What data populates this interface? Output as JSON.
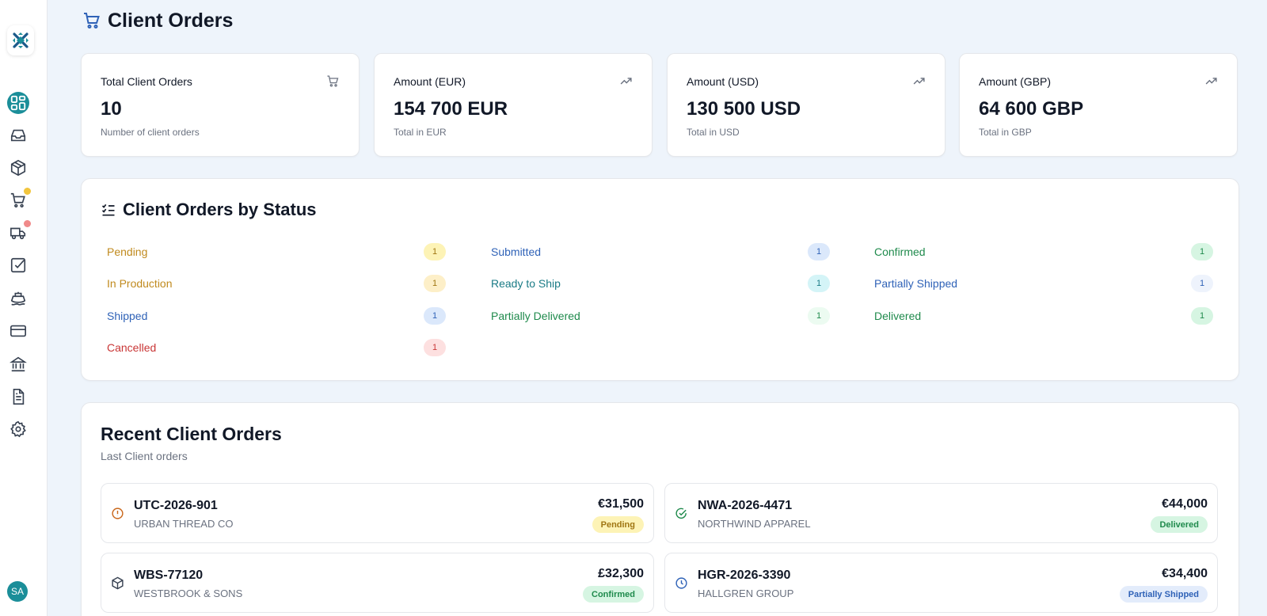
{
  "colors": {
    "accent": "#1b8e99",
    "pending": "#c08a1e",
    "blue": "#2f62b7",
    "teal": "#1a7b86",
    "green": "#1f8a4c",
    "red": "#c93636"
  },
  "page": {
    "title": "Client Orders"
  },
  "sidebar": {
    "items": [
      {
        "icon": "dashboard-icon",
        "active": true
      },
      {
        "icon": "inbox-icon"
      },
      {
        "icon": "package-icon"
      },
      {
        "icon": "cart-icon",
        "dot": "#f2c53d"
      },
      {
        "icon": "truck-icon",
        "dot": "#f08a8a"
      },
      {
        "icon": "checkbox-icon"
      },
      {
        "icon": "ship-icon"
      },
      {
        "icon": "credit-card-icon"
      },
      {
        "icon": "bank-icon"
      },
      {
        "icon": "document-icon"
      },
      {
        "icon": "gear-icon"
      }
    ],
    "avatar": "SA"
  },
  "stats": [
    {
      "title": "Total Client Orders",
      "value": "10",
      "sub": "Number of client orders",
      "icon": "cart-icon"
    },
    {
      "title": "Amount (EUR)",
      "value": "154 700 EUR",
      "sub": "Total in EUR",
      "icon": "trending-up-icon"
    },
    {
      "title": "Amount (USD)",
      "value": "130 500 USD",
      "sub": "Total in USD",
      "icon": "trending-up-icon"
    },
    {
      "title": "Amount (GBP)",
      "value": "64 600 GBP",
      "sub": "Total in GBP",
      "icon": "trending-up-icon"
    }
  ],
  "status": {
    "title": "Client Orders by Status",
    "items": [
      {
        "label": "Pending",
        "count": "1"
      },
      {
        "label": "Submitted",
        "count": "1"
      },
      {
        "label": "Confirmed",
        "count": "1"
      },
      {
        "label": "In Production",
        "count": "1"
      },
      {
        "label": "Ready to Ship",
        "count": "1"
      },
      {
        "label": "Partially Shipped",
        "count": "1"
      },
      {
        "label": "Shipped",
        "count": "1"
      },
      {
        "label": "Partially Delivered",
        "count": "1"
      },
      {
        "label": "Delivered",
        "count": "1"
      },
      {
        "label": "Cancelled",
        "count": "1"
      }
    ]
  },
  "recent": {
    "title": "Recent Client Orders",
    "subtitle": "Last Client orders",
    "orders": [
      {
        "id": "UTC-2026-901",
        "client": "URBAN THREAD CO",
        "amount": "€31,500",
        "status": "Pending",
        "icon": "alert-circle-icon"
      },
      {
        "id": "NWA-2026-4471",
        "client": "NORTHWIND APPAREL",
        "amount": "€44,000",
        "status": "Delivered",
        "icon": "check-circle-icon"
      },
      {
        "id": "WBS-77120",
        "client": "WESTBROOK & SONS",
        "amount": "£32,300",
        "status": "Confirmed",
        "icon": "package-icon"
      },
      {
        "id": "HGR-2026-3390",
        "client": "HALLGREN GROUP",
        "amount": "€34,400",
        "status": "Partially Shipped",
        "icon": "clock-icon"
      }
    ]
  }
}
